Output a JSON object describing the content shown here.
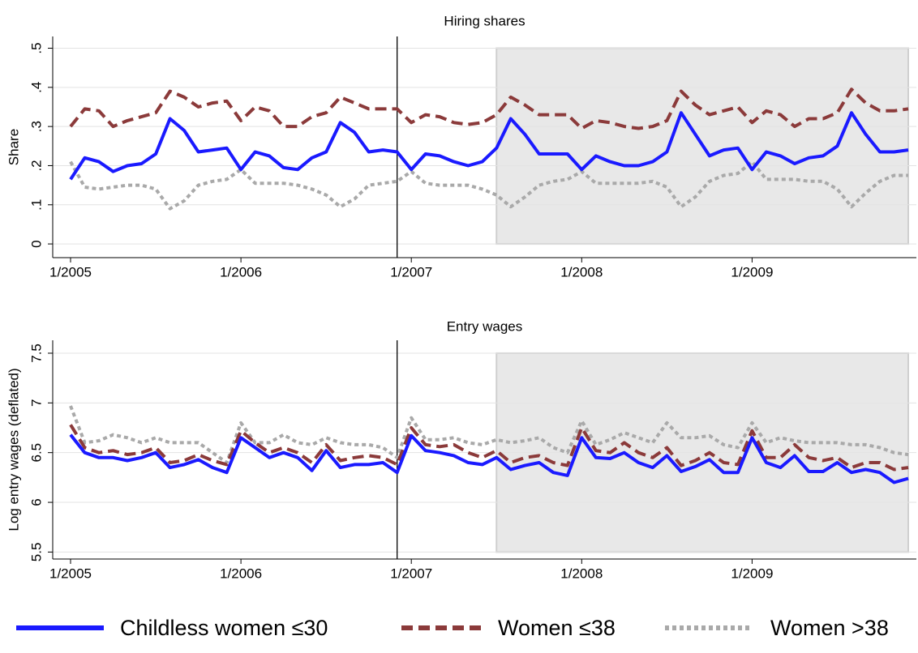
{
  "chart_data": [
    {
      "type": "line",
      "title": "Hiring shares",
      "y_label": "Share",
      "x": [
        "1/2005",
        "2/2005",
        "3/2005",
        "4/2005",
        "5/2005",
        "6/2005",
        "7/2005",
        "8/2005",
        "9/2005",
        "10/2005",
        "11/2005",
        "12/2005",
        "1/2006",
        "2/2006",
        "3/2006",
        "4/2006",
        "5/2006",
        "6/2006",
        "7/2006",
        "8/2006",
        "9/2006",
        "10/2006",
        "11/2006",
        "12/2006",
        "1/2007",
        "2/2007",
        "3/2007",
        "4/2007",
        "5/2007",
        "6/2007",
        "7/2007",
        "8/2007",
        "9/2007",
        "10/2007",
        "11/2007",
        "12/2007",
        "1/2008",
        "2/2008",
        "3/2008",
        "4/2008",
        "5/2008",
        "6/2008",
        "7/2008",
        "8/2008",
        "9/2008",
        "10/2008",
        "11/2008",
        "12/2008",
        "1/2009",
        "2/2009",
        "3/2009",
        "4/2009",
        "5/2009",
        "6/2009",
        "7/2009",
        "8/2009",
        "9/2009",
        "10/2009",
        "11/2009",
        "12/2009"
      ],
      "xticks": [
        "1/2005",
        "1/2006",
        "1/2007",
        "1/2008",
        "1/2009"
      ],
      "ylim": [
        -0.035,
        0.53
      ],
      "yticks": [
        0,
        {
          "value": 0.1,
          "label": ".1"
        },
        {
          "value": 0.2,
          "label": ".2"
        },
        {
          "value": 0.3,
          "label": ".3"
        },
        {
          "value": 0.4,
          "label": ".4"
        },
        {
          "value": 0.5,
          "label": ".5"
        }
      ],
      "grid": true,
      "vline": "12/2006",
      "shade": {
        "x": [
          "7/2007",
          "12/2009"
        ],
        "y": [
          0,
          0.5
        ]
      },
      "series": [
        {
          "name": "Childless women ≤30",
          "color": "#1a1aff",
          "style": "solid",
          "values": [
            0.165,
            0.22,
            0.21,
            0.185,
            0.2,
            0.205,
            0.23,
            0.32,
            0.29,
            0.235,
            0.24,
            0.245,
            0.19,
            0.235,
            0.225,
            0.195,
            0.19,
            0.22,
            0.235,
            0.31,
            0.285,
            0.235,
            0.24,
            0.235,
            0.19,
            0.23,
            0.225,
            0.21,
            0.2,
            0.21,
            0.245,
            0.32,
            0.28,
            0.23,
            0.23,
            0.23,
            0.19,
            0.225,
            0.21,
            0.2,
            0.2,
            0.21,
            0.235,
            0.335,
            0.28,
            0.225,
            0.24,
            0.245,
            0.19,
            0.235,
            0.225,
            0.205,
            0.22,
            0.225,
            0.25,
            0.335,
            0.28,
            0.235,
            0.235,
            0.24
          ]
        },
        {
          "name": "Women ≤38",
          "color": "#8b3a3a",
          "style": "dashed",
          "values": [
            0.3,
            0.345,
            0.34,
            0.3,
            0.315,
            0.325,
            0.335,
            0.39,
            0.375,
            0.35,
            0.36,
            0.365,
            0.315,
            0.35,
            0.34,
            0.3,
            0.3,
            0.325,
            0.335,
            0.375,
            0.36,
            0.345,
            0.345,
            0.345,
            0.31,
            0.33,
            0.325,
            0.31,
            0.305,
            0.31,
            0.33,
            0.375,
            0.355,
            0.33,
            0.33,
            0.33,
            0.295,
            0.315,
            0.31,
            0.3,
            0.295,
            0.3,
            0.315,
            0.39,
            0.355,
            0.33,
            0.34,
            0.35,
            0.31,
            0.34,
            0.33,
            0.3,
            0.32,
            0.32,
            0.335,
            0.395,
            0.36,
            0.34,
            0.34,
            0.345
          ]
        },
        {
          "name": "Women >38",
          "color": "#a9a9a9",
          "style": "dotted",
          "values": [
            0.21,
            0.145,
            0.14,
            0.145,
            0.15,
            0.15,
            0.14,
            0.09,
            0.11,
            0.15,
            0.16,
            0.165,
            0.19,
            0.155,
            0.155,
            0.155,
            0.15,
            0.14,
            0.125,
            0.095,
            0.115,
            0.15,
            0.155,
            0.16,
            0.185,
            0.155,
            0.15,
            0.15,
            0.15,
            0.14,
            0.125,
            0.095,
            0.12,
            0.15,
            0.16,
            0.165,
            0.185,
            0.155,
            0.155,
            0.155,
            0.155,
            0.16,
            0.145,
            0.095,
            0.12,
            0.16,
            0.175,
            0.18,
            0.21,
            0.165,
            0.165,
            0.165,
            0.16,
            0.16,
            0.14,
            0.095,
            0.13,
            0.16,
            0.175,
            0.175
          ]
        }
      ]
    },
    {
      "type": "line",
      "title": "Entry wages",
      "y_label": "Log entry wages (deflated)",
      "x": [
        "1/2005",
        "2/2005",
        "3/2005",
        "4/2005",
        "5/2005",
        "6/2005",
        "7/2005",
        "8/2005",
        "9/2005",
        "10/2005",
        "11/2005",
        "12/2005",
        "1/2006",
        "2/2006",
        "3/2006",
        "4/2006",
        "5/2006",
        "6/2006",
        "7/2006",
        "8/2006",
        "9/2006",
        "10/2006",
        "11/2006",
        "12/2006",
        "1/2007",
        "2/2007",
        "3/2007",
        "4/2007",
        "5/2007",
        "6/2007",
        "7/2007",
        "8/2007",
        "9/2007",
        "10/2007",
        "11/2007",
        "12/2007",
        "1/2008",
        "2/2008",
        "3/2008",
        "4/2008",
        "5/2008",
        "6/2008",
        "7/2008",
        "8/2008",
        "9/2008",
        "10/2008",
        "11/2008",
        "12/2008",
        "1/2009",
        "2/2009",
        "3/2009",
        "4/2009",
        "5/2009",
        "6/2009",
        "7/2009",
        "8/2009",
        "9/2009",
        "10/2009",
        "11/2009",
        "12/2009"
      ],
      "xticks": [
        "1/2005",
        "1/2006",
        "1/2007",
        "1/2008",
        "1/2009"
      ],
      "ylim": [
        5.43,
        7.63
      ],
      "yticks": [
        5.5,
        6,
        6.5,
        7,
        7.5
      ],
      "grid": true,
      "vline": "12/2006",
      "shade": {
        "x": [
          "7/2007",
          "12/2009"
        ],
        "y": [
          5.5,
          7.5
        ]
      },
      "series": [
        {
          "name": "Childless women ≤30",
          "color": "#1a1aff",
          "style": "solid",
          "values": [
            6.68,
            6.5,
            6.45,
            6.45,
            6.42,
            6.45,
            6.5,
            6.35,
            6.38,
            6.43,
            6.35,
            6.3,
            6.65,
            6.55,
            6.45,
            6.5,
            6.45,
            6.32,
            6.52,
            6.35,
            6.38,
            6.38,
            6.4,
            6.3,
            6.67,
            6.52,
            6.5,
            6.47,
            6.4,
            6.38,
            6.45,
            6.33,
            6.37,
            6.4,
            6.3,
            6.27,
            6.65,
            6.45,
            6.44,
            6.5,
            6.4,
            6.35,
            6.47,
            6.31,
            6.36,
            6.43,
            6.3,
            6.3,
            6.65,
            6.4,
            6.35,
            6.47,
            6.31,
            6.31,
            6.4,
            6.3,
            6.33,
            6.3,
            6.2,
            6.24
          ]
        },
        {
          "name": "Women ≤38",
          "color": "#8b3a3a",
          "style": "dashed",
          "values": [
            6.78,
            6.55,
            6.5,
            6.52,
            6.48,
            6.5,
            6.55,
            6.4,
            6.42,
            6.48,
            6.42,
            6.38,
            6.72,
            6.6,
            6.5,
            6.55,
            6.5,
            6.4,
            6.58,
            6.42,
            6.45,
            6.47,
            6.45,
            6.38,
            6.75,
            6.58,
            6.56,
            6.58,
            6.5,
            6.45,
            6.52,
            6.4,
            6.45,
            6.47,
            6.4,
            6.37,
            6.75,
            6.52,
            6.5,
            6.6,
            6.5,
            6.45,
            6.55,
            6.37,
            6.42,
            6.5,
            6.4,
            6.38,
            6.72,
            6.45,
            6.45,
            6.58,
            6.45,
            6.42,
            6.45,
            6.35,
            6.4,
            6.4,
            6.33,
            6.35
          ]
        },
        {
          "name": "Women >38",
          "color": "#a9a9a9",
          "style": "dotted",
          "values": [
            6.97,
            6.6,
            6.62,
            6.68,
            6.65,
            6.6,
            6.65,
            6.6,
            6.6,
            6.6,
            6.5,
            6.4,
            6.8,
            6.6,
            6.6,
            6.68,
            6.6,
            6.58,
            6.65,
            6.6,
            6.58,
            6.58,
            6.55,
            6.45,
            6.85,
            6.63,
            6.63,
            6.65,
            6.6,
            6.58,
            6.63,
            6.6,
            6.62,
            6.65,
            6.55,
            6.5,
            6.82,
            6.58,
            6.63,
            6.7,
            6.65,
            6.6,
            6.8,
            6.65,
            6.65,
            6.67,
            6.58,
            6.55,
            6.8,
            6.6,
            6.65,
            6.62,
            6.6,
            6.6,
            6.6,
            6.58,
            6.58,
            6.55,
            6.5,
            6.48
          ]
        }
      ]
    }
  ]
}
